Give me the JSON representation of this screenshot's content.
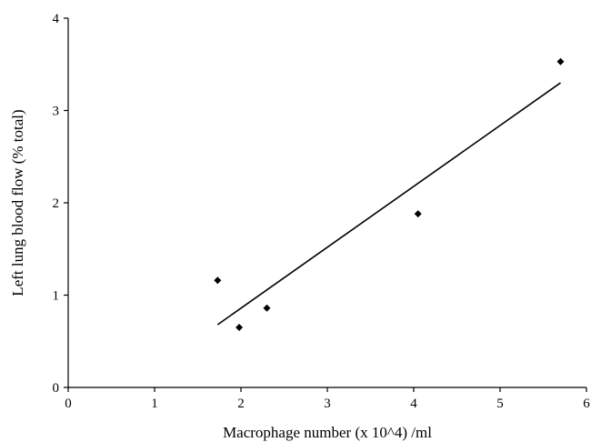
{
  "chart_data": {
    "type": "scatter",
    "title": "",
    "xlabel": "Macrophage number (x 10^4) /ml",
    "ylabel": "Left lung blood flow (% total)",
    "xlim": [
      0,
      6
    ],
    "ylim": [
      0,
      4
    ],
    "xticks": [
      "0",
      "1",
      "2",
      "3",
      "4",
      "5",
      "6"
    ],
    "yticks": [
      "0",
      "1",
      "2",
      "3",
      "4"
    ],
    "grid": false,
    "legend": "none",
    "marker": "diamond",
    "series": [
      {
        "x": [
          1.73,
          1.98,
          2.3,
          4.05,
          5.7
        ],
        "y": [
          1.16,
          0.65,
          0.86,
          1.88,
          3.53
        ]
      }
    ],
    "trendline": {
      "type": "linear",
      "x": [
        1.73,
        5.7
      ],
      "y": [
        0.68,
        3.3
      ]
    }
  }
}
